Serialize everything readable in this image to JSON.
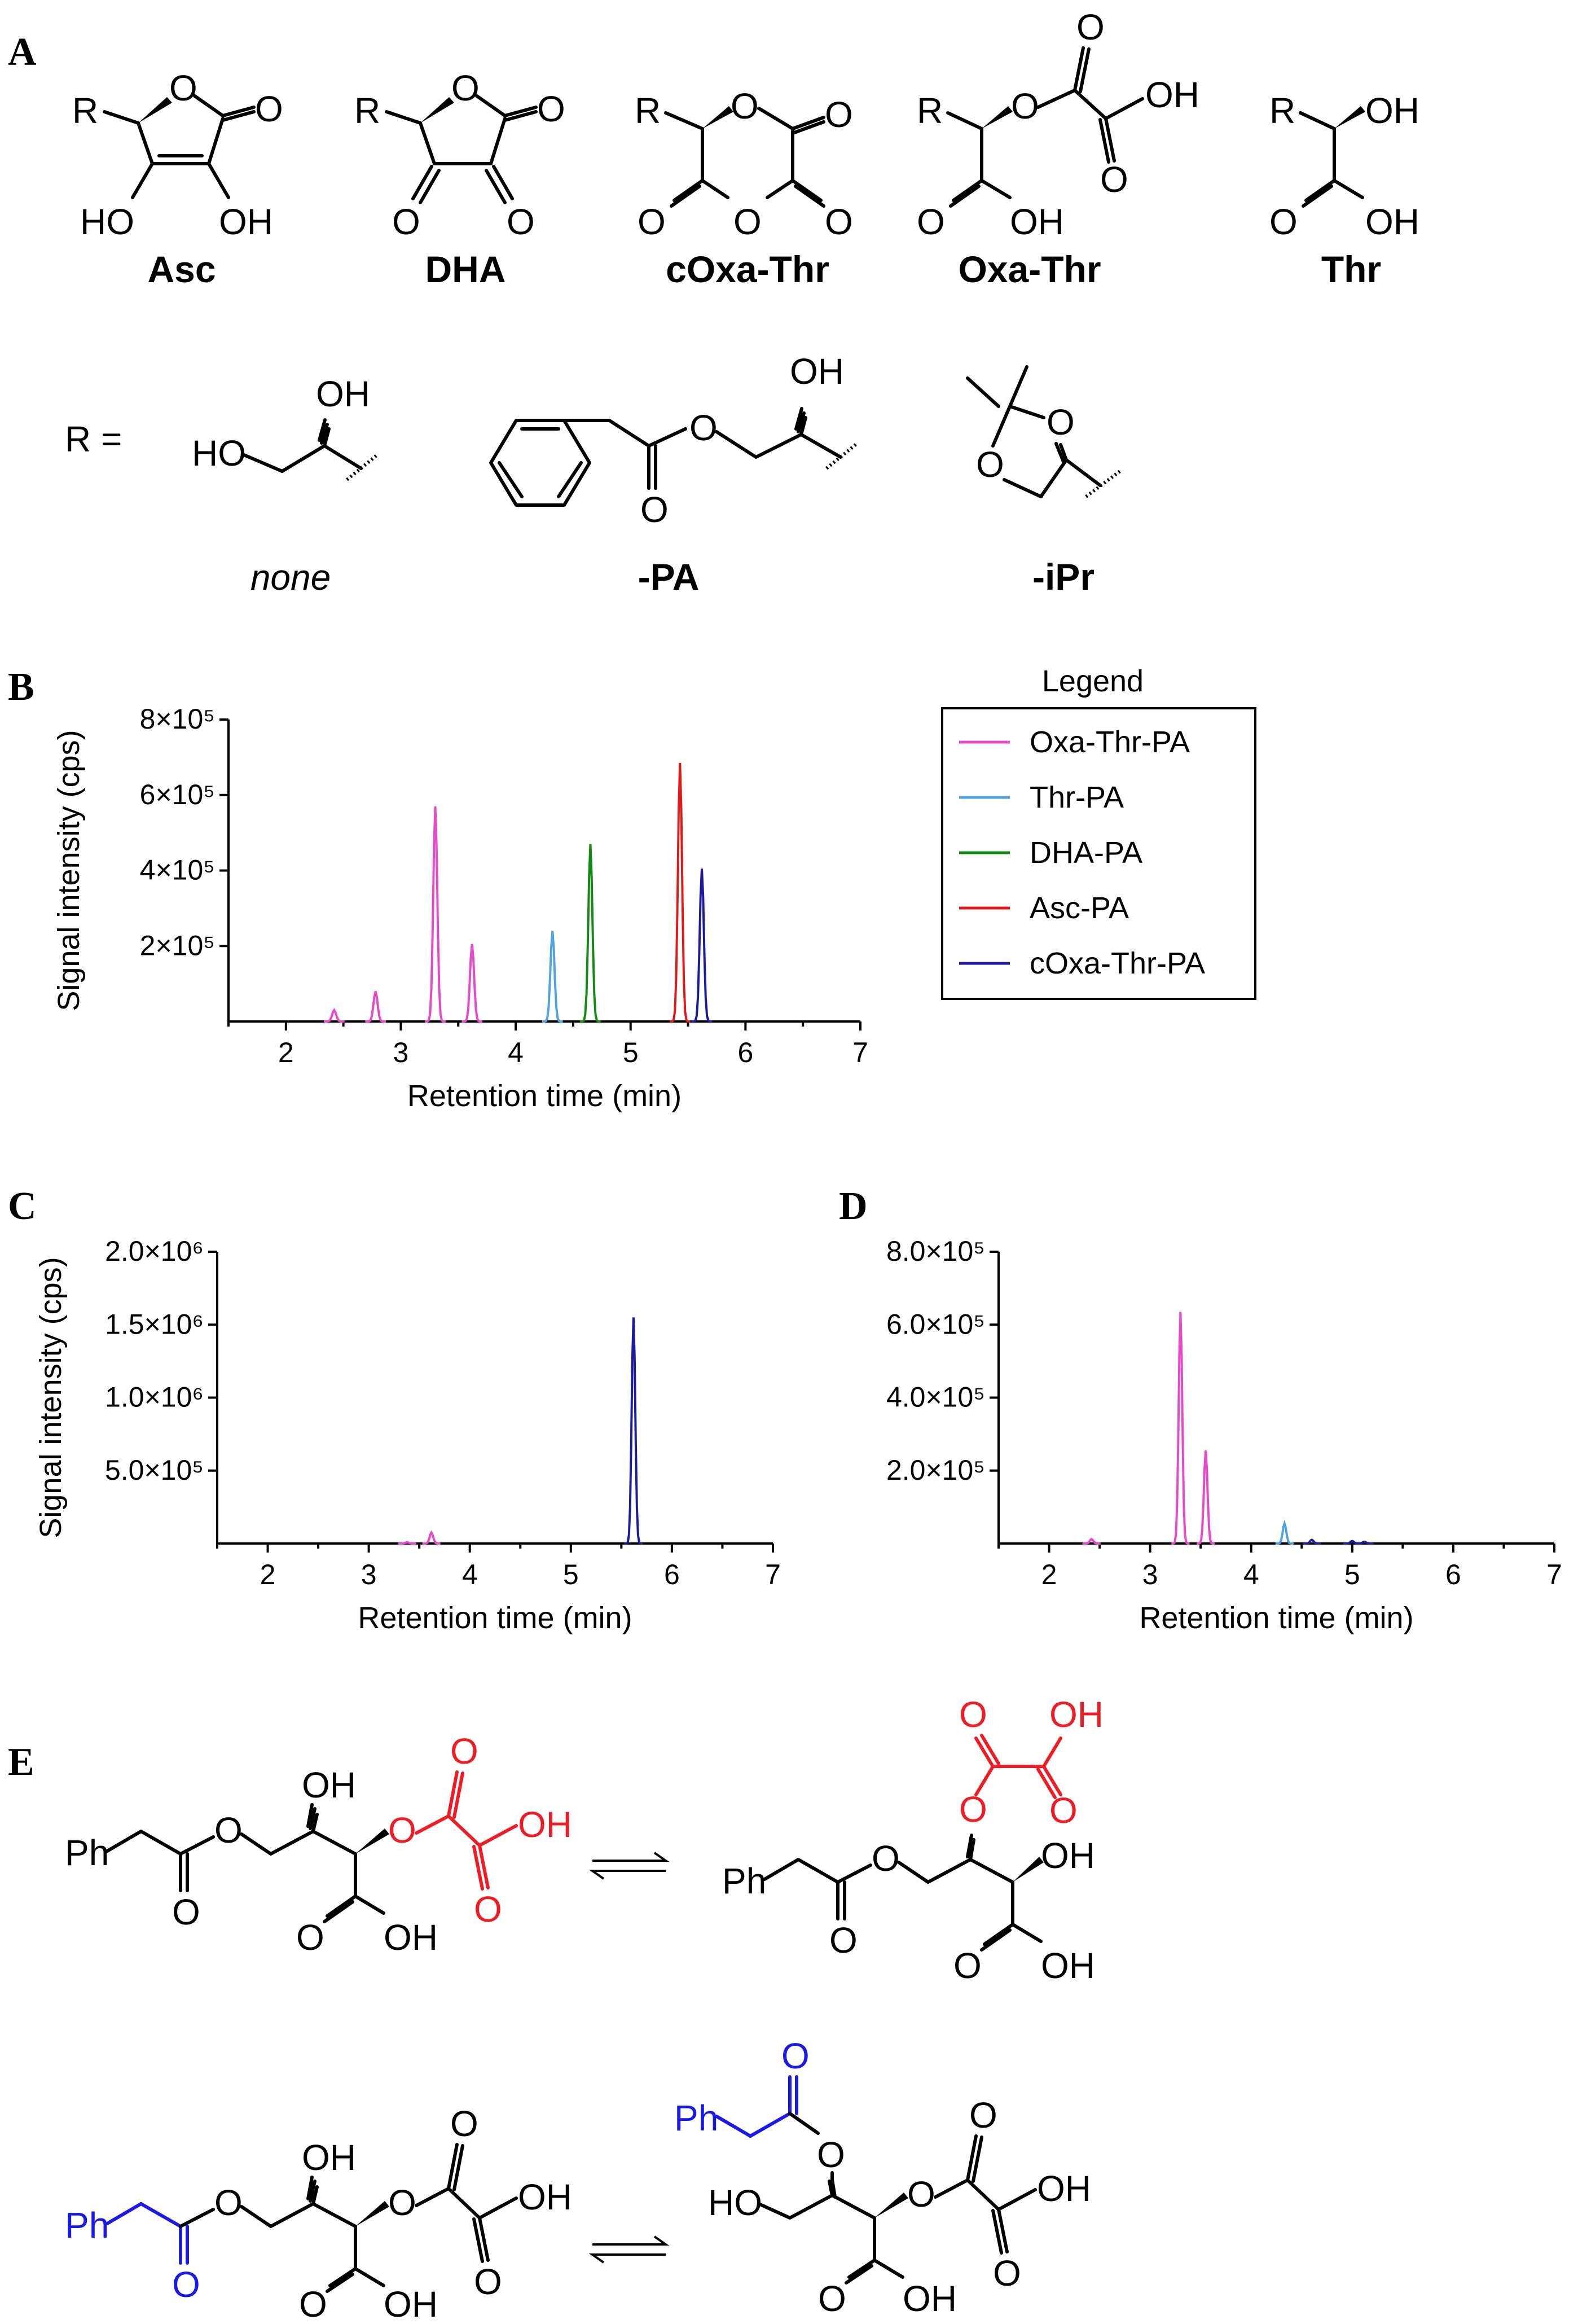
{
  "panels": {
    "a": "A",
    "b": "B",
    "c": "C",
    "d": "D",
    "e": "E"
  },
  "structures": {
    "asc": "Asc",
    "dha": "DHA",
    "coxa_thr": "cOxa-Thr",
    "oxa_thr": "Oxa-Thr",
    "thr": "Thr",
    "r_equals": "R =",
    "none": "none",
    "pa": "-PA",
    "ipr": "-iPr",
    "atoms": {
      "R": "R",
      "O": "O",
      "OH": "OH",
      "HO": "HO",
      "Ph": "Ph"
    }
  },
  "colors": {
    "oxa_thr_pa": "#e64ac8",
    "thr_pa": "#4fa3e0",
    "dha_pa": "#138a13",
    "asc_pa": "#e01919",
    "coxa_thr_pa": "#1b1b9e",
    "highlight_red": "#ee1c25",
    "highlight_blue": "#1a1ae6"
  },
  "chart_data": [
    {
      "panel": "B",
      "type": "line",
      "xlabel": "Retention time (min)",
      "ylabel": "Signal intensity (cps)",
      "xlim": [
        1.5,
        7
      ],
      "ylim": [
        0,
        800000
      ],
      "xticks": [
        "2",
        "3",
        "4",
        "5",
        "6",
        "7"
      ],
      "yticks": [
        "2×10⁵",
        "4×10⁵",
        "6×10⁵",
        "8×10⁵"
      ],
      "legend": {
        "title": "Legend",
        "position": "right"
      },
      "series": [
        {
          "name": "Oxa-Thr-PA",
          "color": "#e64ac8",
          "peaks": [
            [
              2.42,
              30000
            ],
            [
              2.78,
              80000
            ],
            [
              3.3,
              570000
            ],
            [
              3.62,
              205000
            ]
          ]
        },
        {
          "name": "Thr-PA",
          "color": "#4fa3e0",
          "peaks": [
            [
              4.32,
              240000
            ]
          ]
        },
        {
          "name": "DHA-PA",
          "color": "#138a13",
          "peaks": [
            [
              4.65,
              470000
            ]
          ]
        },
        {
          "name": "Asc-PA",
          "color": "#e01919",
          "peaks": [
            [
              5.43,
              685000
            ]
          ]
        },
        {
          "name": "cOxa-Thr-PA",
          "color": "#1b1b9e",
          "peaks": [
            [
              5.62,
              405000
            ]
          ]
        }
      ]
    },
    {
      "panel": "C",
      "type": "line",
      "xlabel": "Retention time (min)",
      "ylabel": "Signal intensity (cps)",
      "xlim": [
        1.5,
        7
      ],
      "ylim": [
        0,
        2000000
      ],
      "xticks": [
        "2",
        "3",
        "4",
        "5",
        "6",
        "7"
      ],
      "yticks": [
        "5.0×10⁵",
        "1.0×10⁶",
        "1.5×10⁶",
        "2.0×10⁶"
      ],
      "series": [
        {
          "color": "#e64ac8",
          "peaks": [
            [
              3.38,
              8000
            ],
            [
              3.62,
              75000
            ]
          ]
        },
        {
          "color": "#1b1b9e",
          "peaks": [
            [
              5.62,
              1550000
            ]
          ]
        }
      ]
    },
    {
      "panel": "D",
      "type": "line",
      "xlabel": "Retention time (min)",
      "ylabel": "",
      "xlim": [
        1.5,
        7
      ],
      "ylim": [
        0,
        800000
      ],
      "xticks": [
        "2",
        "3",
        "4",
        "5",
        "6",
        "7"
      ],
      "yticks": [
        "2.0×10⁵",
        "4.0×10⁵",
        "6.0×10⁵",
        "8.0×10⁵"
      ],
      "series": [
        {
          "color": "#e64ac8",
          "peaks": [
            [
              2.42,
              12000
            ],
            [
              3.3,
              635000
            ],
            [
              3.55,
              255000
            ]
          ]
        },
        {
          "color": "#4fa3e0",
          "peaks": [
            [
              4.33,
              55000
            ]
          ]
        },
        {
          "color": "#1b1b9e",
          "peaks": [
            [
              4.6,
              10000
            ],
            [
              5.0,
              7000
            ],
            [
              5.12,
              5000
            ]
          ]
        }
      ]
    }
  ]
}
